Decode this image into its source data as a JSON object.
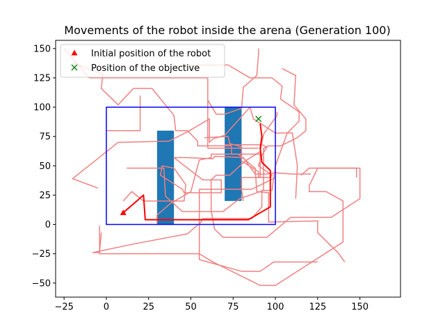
{
  "chart_data": {
    "type": "line",
    "title": "Movements of the robot inside the arena (Generation 100)",
    "xlabel": "",
    "ylabel": "",
    "xlim": [
      -30,
      174
    ],
    "ylim": [
      -62,
      157
    ],
    "xticks": [
      -25,
      0,
      25,
      50,
      75,
      100,
      125,
      150
    ],
    "yticks": [
      -50,
      -25,
      0,
      25,
      50,
      75,
      100,
      125,
      150
    ],
    "grid": false,
    "legend": {
      "placement": "top-left",
      "entries": [
        {
          "label": "Initial position of the robot",
          "marker": "triangle",
          "color": "#ff0000"
        },
        {
          "label": "Position of the objective",
          "marker": "x",
          "color": "#008000"
        }
      ]
    },
    "arena": {
      "x": [
        0,
        100
      ],
      "y": [
        0,
        100
      ],
      "color": "#0000ff"
    },
    "obstacles": [
      {
        "x": [
          30,
          40
        ],
        "y": [
          0,
          80
        ],
        "color": "#1f77b4"
      },
      {
        "x": [
          70,
          80
        ],
        "y": [
          20,
          100
        ],
        "color": "#1f77b4"
      }
    ],
    "initial_position": {
      "x": 10,
      "y": 10
    },
    "objective_position": {
      "x": 90,
      "y": 90
    },
    "best_path": {
      "color": "#ff0000",
      "points": [
        [
          10,
          10
        ],
        [
          22,
          25
        ],
        [
          23,
          4
        ],
        [
          84,
          4
        ],
        [
          97,
          15
        ],
        [
          97,
          46
        ],
        [
          92,
          53
        ],
        [
          91,
          65
        ],
        [
          92,
          75
        ],
        [
          91,
          86
        ]
      ]
    },
    "other_paths": {
      "color": "#f08080",
      "paths": [
        [
          [
            -20,
            138
          ],
          [
            -2,
            128
          ],
          [
            -3,
            116
          ],
          [
            7,
            102
          ],
          [
            16,
            116
          ],
          [
            27,
            116
          ],
          [
            40,
            93
          ],
          [
            41,
            80
          ],
          [
            48,
            80
          ],
          [
            54,
            71
          ],
          [
            54,
            67
          ],
          [
            74,
            67
          ],
          [
            74,
            60
          ],
          [
            91,
            60
          ],
          [
            91,
            40
          ],
          [
            80,
            40
          ],
          [
            80,
            30
          ],
          [
            81,
            20
          ]
        ],
        [
          [
            -5,
            31
          ],
          [
            -20,
            39
          ],
          [
            7,
            70
          ],
          [
            37,
            71
          ],
          [
            48,
            79
          ],
          [
            61,
            90
          ],
          [
            61,
            70
          ],
          [
            63,
            73
          ],
          [
            70,
            76
          ],
          [
            85,
            100
          ],
          [
            87,
            90
          ],
          [
            100,
            78
          ],
          [
            110,
            78
          ],
          [
            113,
            50
          ],
          [
            112,
            22
          ]
        ],
        [
          [
            100,
            40
          ],
          [
            86,
            30
          ],
          [
            55,
            30
          ],
          [
            55,
            -25
          ],
          [
            63,
            -32
          ],
          [
            91,
            -52
          ],
          [
            100,
            -52
          ],
          [
            140,
            -15
          ],
          [
            140,
            20
          ],
          [
            130,
            28
          ],
          [
            120,
            28
          ],
          [
            120,
            33
          ],
          [
            125,
            48
          ],
          [
            148,
            48
          ],
          [
            148,
            40
          ]
        ],
        [
          [
            12,
            48
          ],
          [
            34,
            48
          ],
          [
            35,
            24
          ],
          [
            45,
            11
          ],
          [
            69,
            11
          ],
          [
            79,
            22
          ],
          [
            93,
            29
          ],
          [
            93,
            65
          ],
          [
            96,
            67
          ],
          [
            103,
            67
          ],
          [
            113,
            74
          ],
          [
            118,
            80
          ],
          [
            118,
            90
          ],
          [
            111,
            102
          ],
          [
            112,
            127
          ],
          [
            104,
            133
          ]
        ],
        [
          [
            -4,
            -1
          ],
          [
            -4,
            -25
          ],
          [
            55,
            -25
          ],
          [
            55,
            -30
          ],
          [
            80,
            -40
          ],
          [
            91,
            -40
          ],
          [
            99,
            -32
          ],
          [
            109,
            -32
          ],
          [
            125,
            -32
          ]
        ],
        [
          [
            10,
            20
          ],
          [
            15,
            28
          ],
          [
            22,
            20
          ],
          [
            46,
            20
          ],
          [
            47,
            34
          ],
          [
            40,
            48
          ],
          [
            33,
            50
          ],
          [
            32,
            42
          ],
          [
            45,
            30
          ],
          [
            46,
            27
          ],
          [
            68,
            27
          ],
          [
            68,
            38
          ],
          [
            57,
            38
          ],
          [
            40,
            57
          ],
          [
            47,
            57
          ],
          [
            63,
            56
          ],
          [
            64,
            58
          ],
          [
            81,
            57
          ],
          [
            88,
            43
          ],
          [
            95,
            43
          ],
          [
            100,
            44
          ],
          [
            110,
            43
          ],
          [
            121,
            43
          ],
          [
            121,
            43
          ]
        ],
        [
          [
            -3,
            -7
          ],
          [
            -4,
            -24
          ],
          [
            -8,
            -24
          ],
          [
            15,
            -17
          ],
          [
            48,
            -8
          ],
          [
            56,
            2
          ],
          [
            57,
            5
          ],
          [
            86,
            5
          ],
          [
            92,
            15
          ],
          [
            92,
            29
          ],
          [
            98,
            29
          ],
          [
            100,
            50
          ],
          [
            100,
            50
          ],
          [
            107,
            78
          ],
          [
            114,
            88
          ],
          [
            114,
            96
          ],
          [
            103,
            107
          ],
          [
            104,
            118
          ],
          [
            98,
            125
          ],
          [
            85,
            125
          ],
          [
            72,
            136
          ],
          [
            55,
            136
          ],
          [
            44,
            134
          ],
          [
            46,
            137
          ]
        ],
        [
          [
            115,
            42
          ],
          [
            120,
            48
          ],
          [
            150,
            48
          ],
          [
            150,
            22
          ],
          [
            133,
            6
          ],
          [
            109,
            6
          ],
          [
            95,
            -11
          ],
          [
            69,
            -11
          ],
          [
            64,
            -4
          ],
          [
            62,
            12
          ],
          [
            62,
            38
          ],
          [
            65,
            42
          ],
          [
            73,
            42
          ],
          [
            82,
            54
          ],
          [
            91,
            62
          ],
          [
            93,
            77
          ],
          [
            101,
            93
          ],
          [
            101,
            96
          ]
        ],
        [
          [
            58,
            74
          ],
          [
            72,
            75
          ],
          [
            73,
            69
          ],
          [
            80,
            66
          ],
          [
            80,
            54
          ],
          [
            90,
            45
          ],
          [
            90,
            40
          ],
          [
            97,
            40
          ],
          [
            98,
            42
          ],
          [
            90,
            50
          ],
          [
            92,
            59
          ],
          [
            95,
            66
          ],
          [
            92,
            68
          ],
          [
            70,
            68
          ]
        ],
        [
          [
            30,
            1
          ],
          [
            30,
            8
          ],
          [
            38,
            18
          ],
          [
            50,
            28
          ],
          [
            55,
            55
          ],
          [
            62,
            57
          ],
          [
            62,
            60
          ],
          [
            78,
            60
          ],
          [
            88,
            48
          ],
          [
            89,
            28
          ],
          [
            96,
            27
          ],
          [
            96,
            2
          ],
          [
            125,
            3
          ],
          [
            125,
            -7
          ],
          [
            132,
            -17
          ],
          [
            137,
            -24
          ],
          [
            141,
            -32
          ]
        ],
        [
          [
            90,
            150
          ],
          [
            90,
            145
          ],
          [
            89,
            127
          ],
          [
            81,
            117
          ],
          [
            80,
            99
          ],
          [
            70,
            94
          ],
          [
            65,
            94
          ],
          [
            60,
            106
          ]
        ],
        [
          [
            -25,
            150
          ],
          [
            -10,
            125
          ],
          [
            60,
            125
          ],
          [
            60,
            65
          ],
          [
            90,
            65
          ]
        ],
        [
          [
            0,
            80
          ],
          [
            20,
            80
          ],
          [
            20,
            110
          ]
        ]
      ]
    }
  }
}
